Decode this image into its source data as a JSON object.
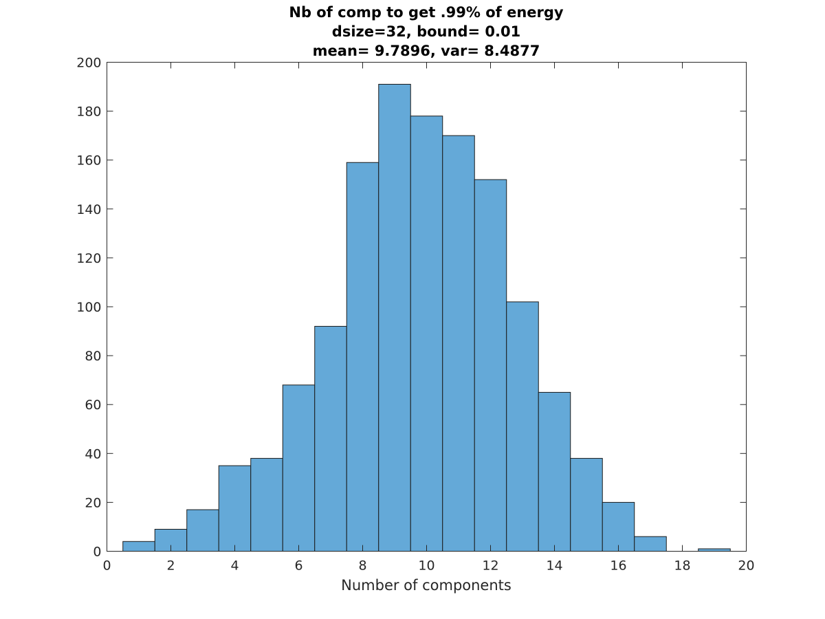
{
  "chart_data": {
    "type": "bar",
    "title_lines": [
      "Nb of comp to get .99% of energy",
      "dsize=32, bound= 0.01",
      "mean= 9.7896, var= 8.4877"
    ],
    "xlabel": "Number of components",
    "ylabel": "",
    "xlim": [
      0,
      20
    ],
    "ylim": [
      0,
      200
    ],
    "x_ticks": [
      0,
      2,
      4,
      6,
      8,
      10,
      12,
      14,
      16,
      18,
      20
    ],
    "y_ticks": [
      0,
      20,
      40,
      60,
      80,
      100,
      120,
      140,
      160,
      180,
      200
    ],
    "bin_width": 1,
    "bins": [
      1,
      2,
      3,
      4,
      5,
      6,
      7,
      8,
      9,
      10,
      11,
      12,
      13,
      14,
      15,
      16,
      17,
      18,
      19
    ],
    "values": [
      4,
      9,
      17,
      35,
      38,
      68,
      92,
      159,
      191,
      178,
      170,
      152,
      102,
      65,
      38,
      20,
      6,
      0,
      1
    ],
    "bar_color": "#64A9D8",
    "edge_color": "#1A1A1A",
    "axis_color": "#262626",
    "grid": false,
    "legend": "none"
  }
}
